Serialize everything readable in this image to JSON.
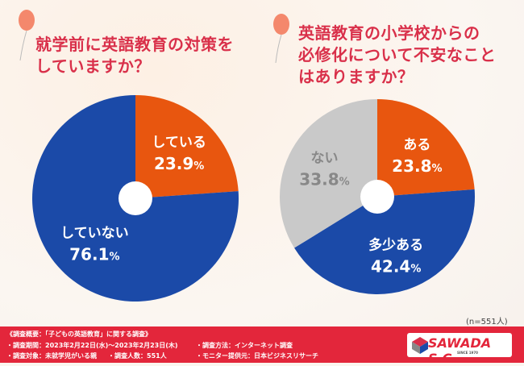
{
  "chart_data": [
    {
      "type": "pie",
      "title": "就学前に英語教育の対策をしていますか？",
      "slices": [
        {
          "label": "している",
          "value": 23.9,
          "color": "#e8560f"
        },
        {
          "label": "していない",
          "value": 76.1,
          "color": "#1b4aa8"
        }
      ]
    },
    {
      "type": "pie",
      "title": "英語教育の小学校からの必修化について不安なことはありますか？",
      "slices": [
        {
          "label": "ある",
          "value": 23.8,
          "color": "#e8560f"
        },
        {
          "label": "多少ある",
          "value": 42.4,
          "color": "#1b4aa8"
        },
        {
          "label": "ない",
          "value": 33.8,
          "color": "#c9c9c9"
        }
      ]
    }
  ],
  "titles": {
    "left": [
      "就学前に英語教育の対策を",
      "していますか？"
    ],
    "right": [
      "英語教育の小学校からの",
      "必修化について不安なこと",
      "はありますか？"
    ]
  },
  "note": "(n=551人)",
  "footer": {
    "overview": "《調査概要：「子どもの英語教育」に関する調査》",
    "period": "・調査期間：2023年2月22日(水)〜2023年2月23日(木)",
    "target": "・調査対象：未就学児がいる親",
    "count": "・調査人数：551人",
    "method": "・調査方法：インターネット調査",
    "provider": "・モニター提供元：日本ビジネスリサーチ"
  },
  "logo": {
    "name": "SAWADA S.C.",
    "sub": "SINCE 1970"
  }
}
